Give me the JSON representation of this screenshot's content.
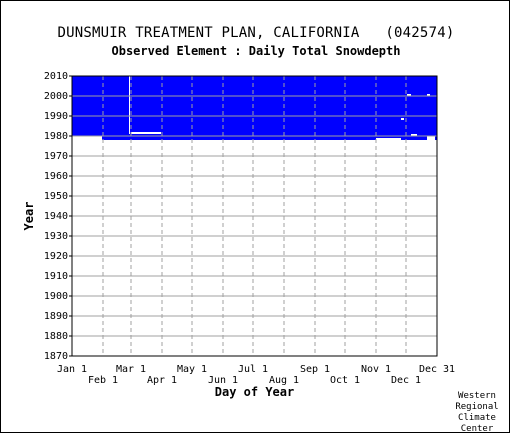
{
  "chart_data": {
    "type": "heatmap",
    "title": "DUNSMUIR TREATMENT PLAN, CALIFORNIA   (042574)",
    "subtitle": "Observed Element : Daily Total Snowdepth",
    "xlabel": "Day of Year",
    "ylabel": "Year",
    "x_ticks_upper": [
      "Jan 1",
      "Mar 1",
      "May 1",
      "Jul 1",
      "Sep 1",
      "Nov 1",
      "Dec 31"
    ],
    "x_ticks_lower": [
      "Feb 1",
      "Apr 1",
      "Jun 1",
      "Aug 1",
      "Oct 1",
      "Dec 1"
    ],
    "y_ticks": [
      2010,
      2000,
      1990,
      1980,
      1970,
      1960,
      1950,
      1940,
      1930,
      1920,
      1910,
      1900,
      1890,
      1880,
      1870
    ],
    "ylim": [
      1870,
      2010
    ],
    "xlim_day": [
      1,
      366
    ],
    "grid": true,
    "data_color": "#0000ff",
    "coverage": {
      "description_years": [
        1978,
        2010
      ],
      "blocks": [
        {
          "day_start": 1,
          "day_end": 366,
          "year_start": 1980,
          "year_end": 2010
        },
        {
          "day_start": 31,
          "day_end": 366,
          "year_start": 1978,
          "year_end": 1980
        },
        {
          "day_start": 100,
          "day_end": 250,
          "year_start": 1978,
          "year_end": 1979
        }
      ],
      "gaps": [
        {
          "day_start": 58,
          "day_end": 59,
          "year_start": 1981,
          "year_end": 2010
        },
        {
          "day_start": 60,
          "day_end": 90,
          "year_start": 1981,
          "year_end": 1982
        },
        {
          "day_start": 305,
          "day_end": 330,
          "year_start": 1978,
          "year_end": 1979
        },
        {
          "day_start": 330,
          "day_end": 333,
          "year_start": 1988,
          "year_end": 1989
        },
        {
          "day_start": 336,
          "day_end": 340,
          "year_start": 2000,
          "year_end": 2001
        },
        {
          "day_start": 340,
          "day_end": 346,
          "year_start": 1980,
          "year_end": 1981
        },
        {
          "day_start": 356,
          "day_end": 359,
          "year_start": 2000,
          "year_end": 2001
        },
        {
          "day_start": 356,
          "day_end": 364,
          "year_start": 1978,
          "year_end": 1980
        }
      ]
    }
  },
  "credit": [
    "Western",
    "Regional",
    "Climate",
    "Center"
  ]
}
